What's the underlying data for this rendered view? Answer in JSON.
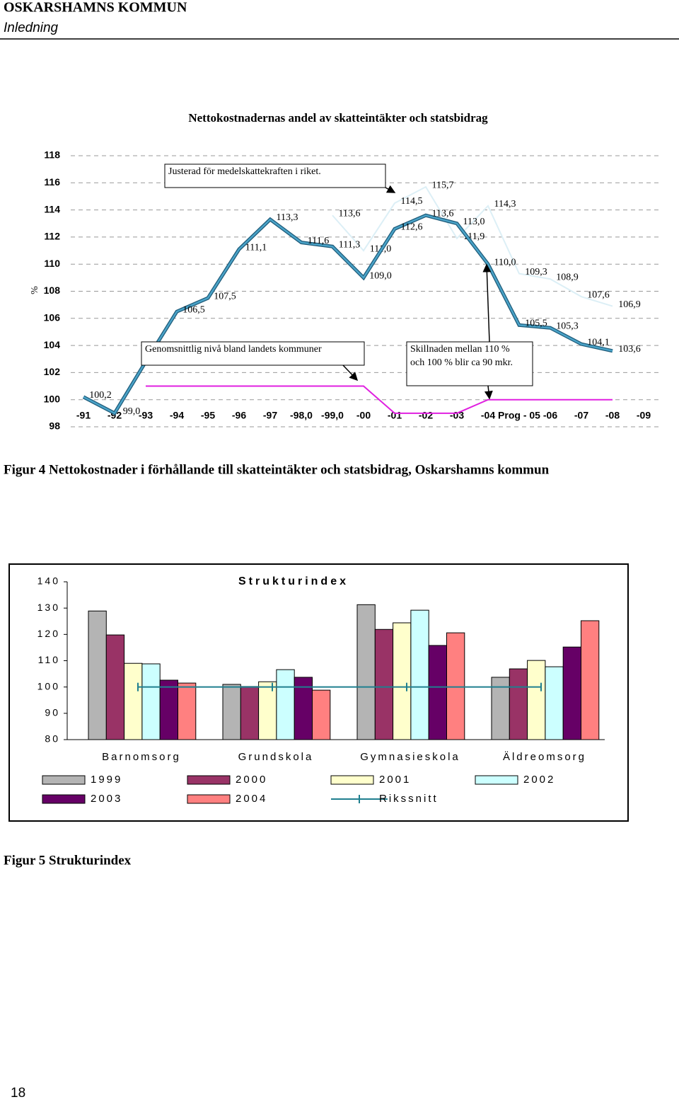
{
  "header": {
    "organization": "OSKARSHAMNS KOMMUN",
    "section": "Inledning"
  },
  "chart_data": [
    {
      "type": "line",
      "title": "Nettokostnadernas andel av skatteintäkter och statsbidrag",
      "y_label": "%",
      "categories": [
        "-91",
        "-92",
        "-93",
        "-94",
        "-95",
        "-96",
        "-97",
        "-98,0",
        "-99,0",
        "-00",
        "-01",
        "-02",
        "-03",
        "-04",
        "Prog - 05",
        "-06",
        "-07",
        "-08",
        "-09"
      ],
      "series": [
        {
          "color": "#4aa3c8",
          "values": [
            100.2,
            99.0,
            102.8,
            106.5,
            107.5,
            111.1,
            113.3,
            111.6,
            111.3,
            109.0,
            112.6,
            113.6,
            113.0,
            110.0,
            105.5,
            105.3,
            104.1,
            103.6,
            null
          ],
          "value_labels": [
            "100,2",
            "99,0",
            null,
            "106,5",
            "107,5",
            "111,1",
            "113,3",
            "111,6",
            "111,3",
            "109,0",
            "112,6",
            "113,6",
            "113,0",
            "110,0",
            "105,5",
            "105,3",
            "104,1",
            "103,6",
            null
          ]
        },
        {
          "color": "#dceff6",
          "values": [
            null,
            null,
            null,
            null,
            null,
            null,
            null,
            null,
            113.6,
            111.0,
            114.5,
            115.7,
            111.9,
            114.3,
            109.3,
            108.9,
            107.6,
            106.9,
            null
          ],
          "value_labels": [
            null,
            null,
            null,
            null,
            null,
            null,
            null,
            null,
            "113,6",
            "111,0",
            "114,5",
            "115,7",
            "111,9",
            "114,3",
            "109,3",
            "108,9",
            "107,6",
            "106,9",
            null
          ]
        },
        {
          "color": "#e020e0",
          "values": [
            null,
            null,
            101,
            101,
            101,
            101,
            101,
            101,
            101,
            101,
            99,
            99,
            99,
            100,
            100,
            100,
            100,
            100,
            null
          ]
        }
      ],
      "ylim": [
        98,
        118
      ],
      "yticks": [
        98,
        100,
        102,
        104,
        106,
        108,
        110,
        112,
        114,
        116,
        118
      ],
      "grid": true,
      "annotations": [
        "Justerad för medelskattekraften i riket.",
        "Genomsnittlig nivå bland landets kommuner",
        "Skillnaden mellan 110 %",
        "och 100 % blir ca 90 mkr."
      ]
    },
    {
      "type": "bar",
      "title": "Strukturindex",
      "categories": [
        "Barnomsorg",
        "Grundskola",
        "Gymnasieskola",
        "Äldreomsorg"
      ],
      "series": [
        {
          "name": "1999",
          "color": "#b4b4b4",
          "values": [
            128.9,
            101.0,
            131.3,
            103.7
          ]
        },
        {
          "name": "2000",
          "color": "#993366",
          "values": [
            119.8,
            100.2,
            121.9,
            106.9
          ]
        },
        {
          "name": "2001",
          "color": "#ffffcc",
          "values": [
            109.0,
            102.0,
            124.4,
            110.1
          ]
        },
        {
          "name": "2002",
          "color": "#ccffff",
          "values": [
            108.8,
            106.6,
            129.2,
            107.7
          ]
        },
        {
          "name": "2003",
          "color": "#660066",
          "values": [
            102.6,
            103.7,
            115.8,
            115.2
          ]
        },
        {
          "name": "2004",
          "color": "#ff8080",
          "values": [
            101.5,
            98.8,
            120.6,
            125.2
          ]
        },
        {
          "name": "Rikssnitt",
          "color": "#1f7f8f",
          "type": "line",
          "values": [
            100,
            100,
            100,
            100
          ]
        }
      ],
      "ylim": [
        80,
        140
      ],
      "yticks": [
        80,
        90,
        100,
        110,
        120,
        130,
        140
      ]
    }
  ],
  "captions": [
    "Figur 4 Nettokostnader i förhållande till skatteintäkter och statsbidrag, Oskarshamns kommun",
    "Figur 5 Strukturindex"
  ],
  "page_number": "18"
}
